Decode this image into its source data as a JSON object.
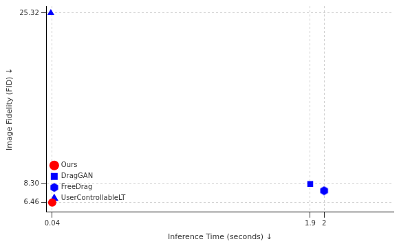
{
  "chart_data": {
    "type": "scatter",
    "x_label": "Inference Time (seconds) ↓",
    "y_label": "Image Fidelity (FID) ↓",
    "series": [
      {
        "name": "Ours",
        "color": "#ff0000",
        "marker": "circle",
        "x": [
          0.04
        ],
        "y": [
          6.46
        ]
      },
      {
        "name": "DragGAN",
        "color": "#0000ff",
        "marker": "square",
        "x": [
          1.9
        ],
        "y": [
          8.3
        ]
      },
      {
        "name": "FreeDrag",
        "color": "#0000ff",
        "marker": "hexagon",
        "x": [
          2
        ],
        "y": [
          7.64
        ]
      },
      {
        "name": "UserControllableLT",
        "color": "#0000ff",
        "marker": "triangle",
        "x": [
          0.03
        ],
        "y": [
          25.32
        ]
      }
    ],
    "xlim": [
      0,
      2.5
    ],
    "ylim": [
      5.5,
      26
    ],
    "xticks": [
      0.04,
      1.9,
      2
    ],
    "yticks": [
      6.46,
      {
        "value": 8.3,
        "label": "8.30"
      },
      25.32
    ],
    "grid": true,
    "legend": "upper right"
  }
}
